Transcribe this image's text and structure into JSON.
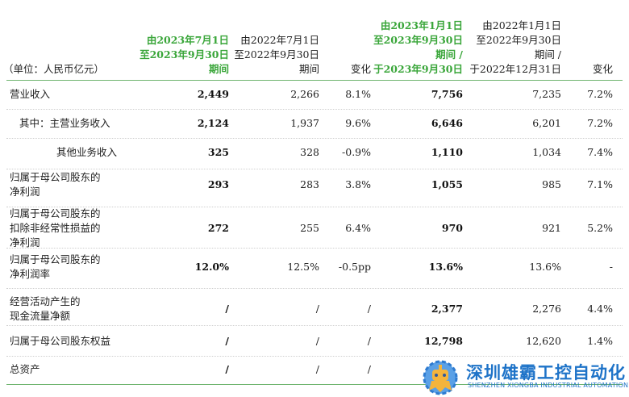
{
  "header": {
    "unit": "（单位：人民币亿元）",
    "col1": [
      "由2023年7月1日",
      "至2023年9月30日",
      "期间"
    ],
    "col2": [
      "由2022年7月1日",
      "至2022年9月30日",
      "期间"
    ],
    "col3": [
      "变化"
    ],
    "col4": [
      "由2023年1月1日",
      "至2023年9月30日",
      "期间 /",
      "于2023年9月30日"
    ],
    "col5": [
      "由2022年1月1日",
      "至2022年9月30日",
      "期间 /",
      "于2022年12月31日"
    ],
    "col6": [
      "变化"
    ]
  },
  "rows": [
    {
      "label": [
        "营业收入"
      ],
      "q3_2023": "2,449",
      "q3_2022": "2,266",
      "q_change": "8.1%",
      "ytd_2023": "7,756",
      "ytd_2022": "7,235",
      "ytd_change": "7.2%"
    },
    {
      "label": [
        "其中：主营业务收入"
      ],
      "q3_2023": "2,124",
      "q3_2022": "1,937",
      "q_change": "9.6%",
      "ytd_2023": "6,646",
      "ytd_2022": "6,201",
      "ytd_change": "7.2%"
    },
    {
      "label": [
        "其他业务收入"
      ],
      "q3_2023": "325",
      "q3_2022": "328",
      "q_change": "-0.9%",
      "ytd_2023": "1,110",
      "ytd_2022": "1,034",
      "ytd_change": "7.4%"
    },
    {
      "label": [
        "归属于母公司股东的",
        "净利润"
      ],
      "q3_2023": "293",
      "q3_2022": "283",
      "q_change": "3.8%",
      "ytd_2023": "1,055",
      "ytd_2022": "985",
      "ytd_change": "7.1%"
    },
    {
      "label": [
        "归属于母公司股东的",
        "扣除非经常性损益的",
        "净利润"
      ],
      "q3_2023": "272",
      "q3_2022": "255",
      "q_change": "6.4%",
      "ytd_2023": "970",
      "ytd_2022": "921",
      "ytd_change": "5.2%"
    },
    {
      "label": [
        "归属于母公司股东的",
        "净利润率"
      ],
      "q3_2023": "12.0%",
      "q3_2022": "12.5%",
      "q_change": "-0.5pp",
      "ytd_2023": "13.6%",
      "ytd_2022": "13.6%",
      "ytd_change": "-"
    },
    {
      "label": [
        "经营活动产生的",
        "现金流量净额"
      ],
      "q3_2023": "/",
      "q3_2022": "/",
      "q_change": "/",
      "ytd_2023": "2,377",
      "ytd_2022": "2,276",
      "ytd_change": "4.4%"
    },
    {
      "label": [
        "归属于母公司股东权益"
      ],
      "q3_2023": "/",
      "q3_2022": "/",
      "q_change": "/",
      "ytd_2023": "12,798",
      "ytd_2022": "12,620",
      "ytd_change": "1.4%"
    },
    {
      "label": [
        "总资产"
      ],
      "q3_2023": "/",
      "q3_2022": "/",
      "q_change": "/",
      "ytd_2023": "",
      "ytd_2022": "",
      "ytd_change": ""
    }
  ],
  "watermark": {
    "title": "深圳雄霸工控自动化",
    "subtitle": "SHENZHEN XIONGBA INDUSTRIAL AUTOMATION",
    "logo_icon": "gear-robot-icon",
    "color": "#1e73c8"
  },
  "colors": {
    "highlight": "#3aa63a",
    "rule": "#6fb46f"
  }
}
